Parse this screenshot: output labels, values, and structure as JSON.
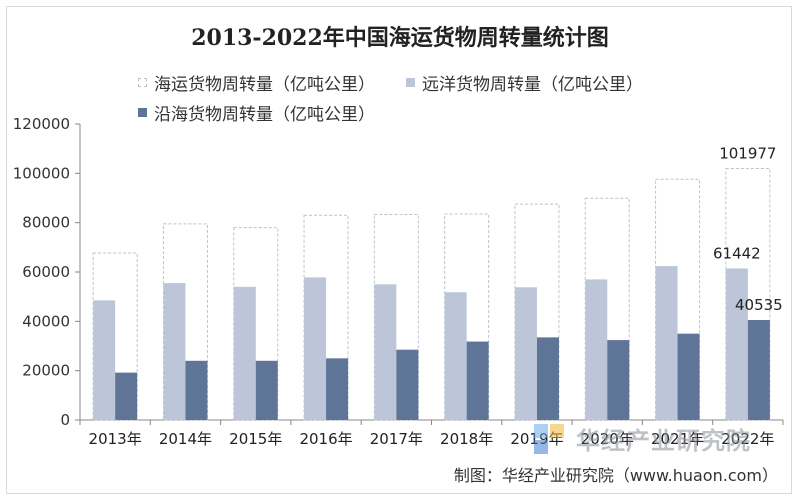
{
  "colors": {
    "total_fill": "#ffffff",
    "total_stroke": "#bcc3cf",
    "ocean": "#bcc6d8",
    "coastal": "#5f7598",
    "axis": "#888888",
    "text": "#222222"
  },
  "source_note": "制图：华经产业研究院（www.huaon.com）",
  "watermark": {
    "text": "华经产业研究院",
    "logo": "huajing-logo"
  },
  "chart_data": {
    "type": "bar",
    "title": "2013-2022年中国海运货物周转量统计图",
    "categories": [
      "2013年",
      "2014年",
      "2015年",
      "2016年",
      "2017年",
      "2018年",
      "2019年",
      "2020年",
      "2021年",
      "2022年"
    ],
    "series": [
      {
        "name": "海运货物周转量（亿吨公里）",
        "style": "dashed-outline",
        "values": [
          67700,
          79500,
          78000,
          83000,
          83300,
          83500,
          87500,
          89900,
          97600,
          101977
        ]
      },
      {
        "name": "远洋货物周转量（亿吨公里）",
        "style": "light-blue",
        "values": [
          48500,
          55500,
          54000,
          57800,
          55000,
          51800,
          53800,
          57000,
          62400,
          61442
        ]
      },
      {
        "name": "沿海货物周转量（亿吨公里）",
        "style": "dark-blue",
        "values": [
          19200,
          24000,
          24000,
          25000,
          28500,
          31800,
          33500,
          32400,
          35000,
          40535
        ]
      }
    ],
    "data_labels": [
      {
        "series": 0,
        "category": 9,
        "text": "101977"
      },
      {
        "series": 1,
        "category": 9,
        "text": "61442"
      },
      {
        "series": 2,
        "category": 9,
        "text": "40535"
      }
    ],
    "ylim": [
      0,
      120000
    ],
    "yticks": [
      "0",
      "20000",
      "40000",
      "60000",
      "80000",
      "100000",
      "120000"
    ],
    "grid": false,
    "legend_position": "top-left"
  }
}
